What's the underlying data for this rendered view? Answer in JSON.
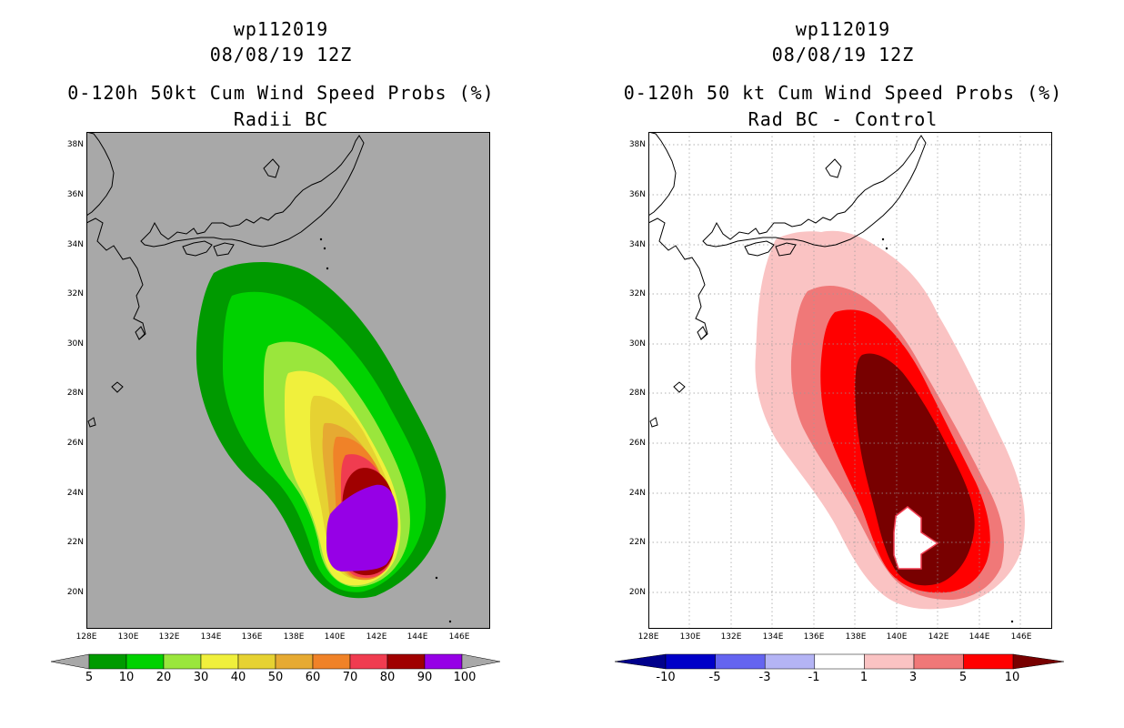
{
  "left": {
    "title1": "wp112019",
    "title2": "08/08/19 12Z",
    "title3": "0-120h 50kt Cum Wind Speed Probs (%)",
    "title4": "Radii BC",
    "background_color": "#a8a8a8",
    "colorbar": {
      "colors": [
        "#009a00",
        "#00d200",
        "#9ae63c",
        "#f0f03c",
        "#e6d232",
        "#e6aa32",
        "#f08228",
        "#f03c50",
        "#a00000",
        "#9600e6"
      ],
      "end_color": "#a8a8a8",
      "labels": [
        "5",
        "10",
        "20",
        "30",
        "40",
        "50",
        "60",
        "70",
        "80",
        "90",
        "100"
      ]
    }
  },
  "right": {
    "title1": "wp112019",
    "title2": "08/08/19 12Z",
    "title3": "0-120h 50 kt Cum Wind Speed Probs (%)",
    "title4": "Rad BC - Control",
    "background_color": "#ffffff",
    "colorbar": {
      "colors": [
        "#0000c8",
        "#6464f0",
        "#b4b4f5",
        "#ffffff",
        "#fac3c3",
        "#f07878",
        "#ff0000"
      ],
      "low_end_color": "#00008c",
      "high_end_color": "#780000",
      "labels": [
        "-10",
        "-5",
        "-3",
        "-1",
        "1",
        "3",
        "5",
        "10"
      ]
    }
  },
  "axes": {
    "lat_labels": [
      "38N",
      "36N",
      "34N",
      "32N",
      "30N",
      "28N",
      "26N",
      "24N",
      "22N",
      "20N"
    ],
    "lon_labels": [
      "128E",
      "130E",
      "132E",
      "134E",
      "136E",
      "138E",
      "140E",
      "142E",
      "144E",
      "146E"
    ]
  }
}
